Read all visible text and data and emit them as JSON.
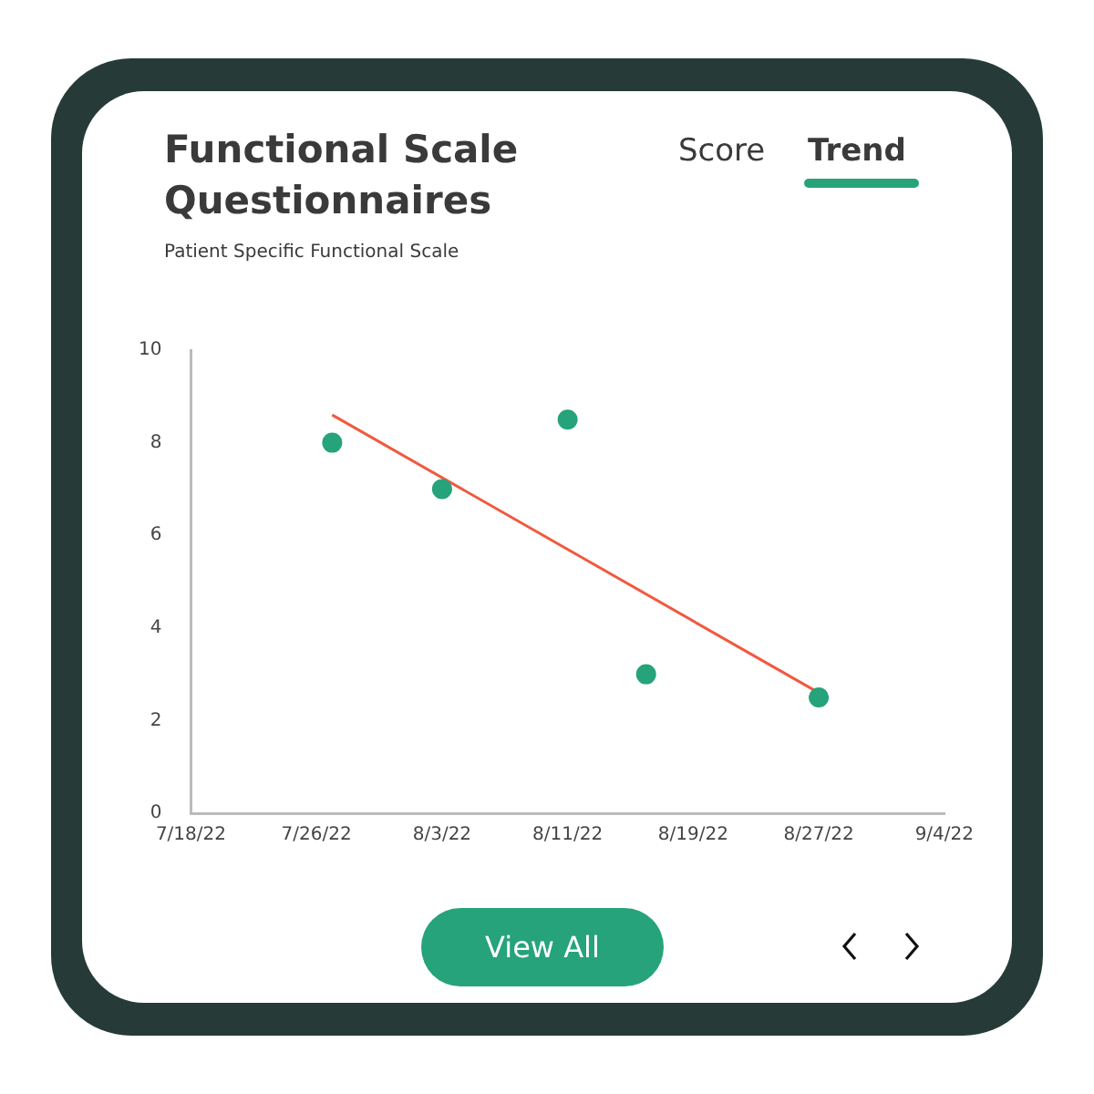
{
  "chart_data": {
    "type": "scatter",
    "title": "Functional Scale Questionnaires",
    "subtitle": "Patient Specific Functional Scale",
    "annotations": [
      "Score",
      "Trend",
      "View All"
    ],
    "series": [
      {
        "color": "#26a37a",
        "marker": "circle",
        "x": [
          "--07-27",
          "--08-03",
          "--08-11",
          "--08-16",
          "--08-27"
        ],
        "values": [
          8,
          7,
          8.5,
          3,
          2.5
        ]
      },
      {
        "type": "line",
        "marker": "none",
        "color": "#f2583e",
        "x": [
          "--07-27",
          "--08-27"
        ],
        "values": [
          8.6,
          2.6
        ]
      }
    ],
    "xlim": [
      "--07-18",
      "--09-04"
    ],
    "xticks": [
      {
        "value": "--07-18",
        "label": "7/18/22"
      },
      {
        "value": "--07-26",
        "label": "7/26/22"
      },
      {
        "value": "--08-03",
        "label": "8/3/22"
      },
      {
        "value": "--08-11",
        "label": "8/11/22"
      },
      {
        "value": "--08-19",
        "label": "8/19/22"
      },
      {
        "value": "--08-27",
        "label": "8/27/22"
      },
      {
        "value": "--09-04",
        "label": "9/4/22"
      }
    ],
    "ylim": [
      0,
      10
    ],
    "yticks": [
      0,
      2,
      4,
      6,
      8,
      10
    ],
    "grid": false,
    "legend": false,
    "line_style": "solid"
  }
}
